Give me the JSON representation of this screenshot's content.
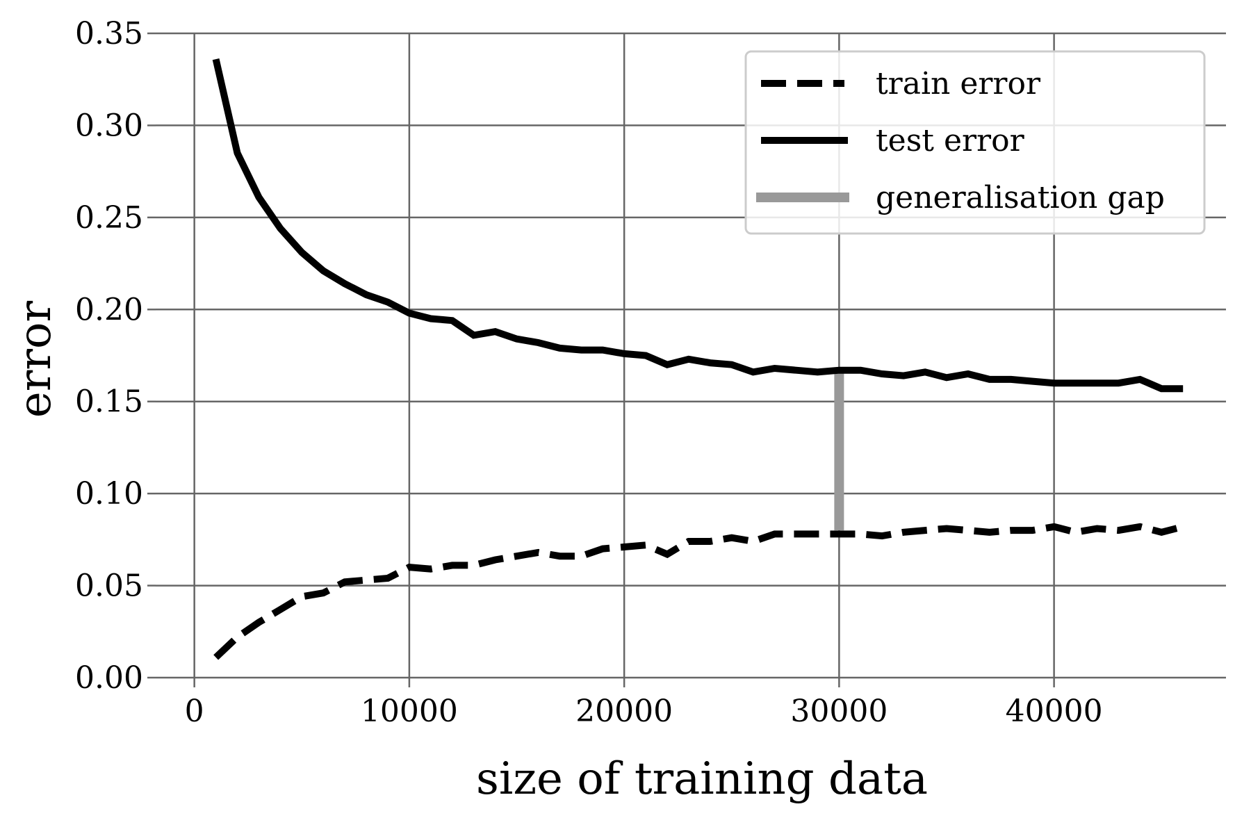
{
  "chart_data": {
    "type": "line",
    "xlabel": "size of training data",
    "ylabel": "error",
    "xlim": [
      -1800,
      48000
    ],
    "ylim": [
      0,
      0.35
    ],
    "x_ticks": [
      0,
      10000,
      20000,
      30000,
      40000
    ],
    "x_tick_labels": [
      "0",
      "10000",
      "20000",
      "30000",
      "40000"
    ],
    "y_ticks": [
      0,
      0.05,
      0.1,
      0.15,
      0.2,
      0.25,
      0.3,
      0.35
    ],
    "y_tick_labels": [
      "0.00",
      "0.05",
      "0.10",
      "0.15",
      "0.20",
      "0.25",
      "0.30",
      "0.35"
    ],
    "grid": true,
    "legend_position": "top-right",
    "x": [
      1000,
      2000,
      3000,
      4000,
      5000,
      6000,
      7000,
      8000,
      9000,
      10000,
      11000,
      12000,
      13000,
      14000,
      15000,
      16000,
      17000,
      18000,
      19000,
      20000,
      21000,
      22000,
      23000,
      24000,
      25000,
      26000,
      27000,
      28000,
      29000,
      30000,
      31000,
      32000,
      33000,
      34000,
      35000,
      36000,
      37000,
      38000,
      39000,
      40000,
      41000,
      42000,
      43000,
      44000,
      45000,
      46000
    ],
    "series": [
      {
        "name": "train error",
        "style": "dashed",
        "color": "#000000",
        "values": [
          0.011,
          0.022,
          0.03,
          0.037,
          0.044,
          0.046,
          0.052,
          0.053,
          0.054,
          0.06,
          0.059,
          0.061,
          0.061,
          0.064,
          0.066,
          0.068,
          0.066,
          0.066,
          0.07,
          0.071,
          0.072,
          0.067,
          0.074,
          0.074,
          0.076,
          0.074,
          0.078,
          0.078,
          0.078,
          0.078,
          0.078,
          0.077,
          0.079,
          0.08,
          0.081,
          0.08,
          0.079,
          0.08,
          0.08,
          0.082,
          0.079,
          0.081,
          0.08,
          0.082,
          0.079,
          0.082
        ]
      },
      {
        "name": "test error",
        "style": "solid",
        "color": "#000000",
        "values": [
          0.336,
          0.285,
          0.261,
          0.244,
          0.231,
          0.221,
          0.214,
          0.208,
          0.204,
          0.198,
          0.195,
          0.194,
          0.186,
          0.188,
          0.184,
          0.182,
          0.179,
          0.178,
          0.178,
          0.176,
          0.175,
          0.17,
          0.173,
          0.171,
          0.17,
          0.166,
          0.168,
          0.167,
          0.166,
          0.167,
          0.167,
          0.165,
          0.164,
          0.166,
          0.163,
          0.165,
          0.162,
          0.162,
          0.161,
          0.16,
          0.16,
          0.16,
          0.16,
          0.162,
          0.157,
          0.157
        ]
      }
    ],
    "gap_marker": {
      "name": "generalisation gap",
      "color": "#999999",
      "x": 30000,
      "y_from": 0.08,
      "y_to": 0.167
    }
  }
}
